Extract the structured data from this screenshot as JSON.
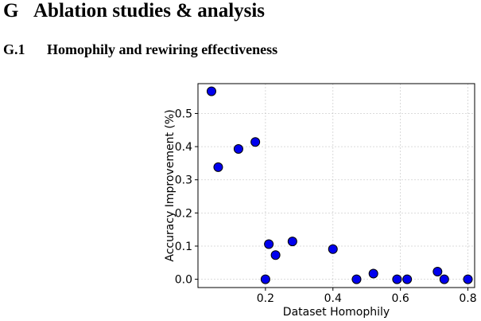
{
  "section": {
    "number": "G",
    "title": "Ablation studies & analysis"
  },
  "subsection": {
    "number": "G.1",
    "title": "Homophily and rewiring effectiveness"
  },
  "chart_data": {
    "type": "scatter",
    "title": "",
    "xlabel": "Dataset Homophily",
    "ylabel": "Accuracy Improvement (%)",
    "xlim": [
      0.0,
      0.82
    ],
    "ylim": [
      -0.025,
      0.59
    ],
    "xticks": [
      0.2,
      0.4,
      0.6,
      0.8
    ],
    "xtick_labels": [
      "0.2",
      "0.4",
      "0.6",
      "0.8"
    ],
    "yticks": [
      0.0,
      0.1,
      0.2,
      0.3,
      0.4,
      0.5
    ],
    "ytick_labels": [
      "0.0",
      "0.1",
      "0.2",
      "0.3",
      "0.4",
      "0.5"
    ],
    "grid": true,
    "marker_color": "#0000ee",
    "marker_edge_color": "#000000",
    "points": [
      {
        "x": 0.04,
        "y": 0.567
      },
      {
        "x": 0.06,
        "y": 0.338
      },
      {
        "x": 0.12,
        "y": 0.393
      },
      {
        "x": 0.17,
        "y": 0.414
      },
      {
        "x": 0.2,
        "y": 0.0
      },
      {
        "x": 0.21,
        "y": 0.106
      },
      {
        "x": 0.23,
        "y": 0.073
      },
      {
        "x": 0.28,
        "y": 0.114
      },
      {
        "x": 0.4,
        "y": 0.091
      },
      {
        "x": 0.47,
        "y": 0.0
      },
      {
        "x": 0.52,
        "y": 0.017
      },
      {
        "x": 0.59,
        "y": 0.0
      },
      {
        "x": 0.62,
        "y": 0.0
      },
      {
        "x": 0.71,
        "y": 0.023
      },
      {
        "x": 0.73,
        "y": 0.0
      },
      {
        "x": 0.8,
        "y": 0.0
      }
    ]
  }
}
